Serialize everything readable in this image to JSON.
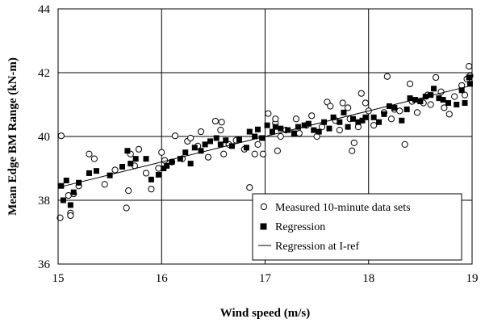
{
  "chart_data": {
    "type": "scatter",
    "title": "",
    "xlabel": "Wind speed (m/s)",
    "ylabel": "Mean Edge BM Range (kN-m)",
    "xlim": [
      15,
      19
    ],
    "ylim": [
      36,
      44
    ],
    "xticks": [
      15,
      16,
      17,
      18,
      19
    ],
    "yticks": [
      36,
      38,
      40,
      42,
      44
    ],
    "grid": true,
    "legend_position": "bottom-right",
    "series": [
      {
        "name": "Measured 10-minute data sets",
        "marker": "open-circle",
        "color": "#000000",
        "points": [
          [
            15.03,
            40.02
          ],
          [
            15.02,
            37.45
          ],
          [
            15.1,
            38.15
          ],
          [
            15.12,
            37.6
          ],
          [
            15.12,
            37.52
          ],
          [
            15.15,
            38.2
          ],
          [
            15.2,
            38.45
          ],
          [
            15.3,
            39.45
          ],
          [
            15.35,
            39.3
          ],
          [
            15.45,
            38.5
          ],
          [
            15.55,
            38.95
          ],
          [
            15.66,
            37.76
          ],
          [
            15.68,
            38.3
          ],
          [
            15.7,
            39.45
          ],
          [
            15.74,
            39.08
          ],
          [
            15.78,
            39.6
          ],
          [
            15.85,
            38.85
          ],
          [
            15.9,
            38.35
          ],
          [
            15.97,
            39.0
          ],
          [
            16.0,
            39.5
          ],
          [
            16.03,
            39.25
          ],
          [
            16.1,
            39.2
          ],
          [
            16.13,
            40.02
          ],
          [
            16.2,
            39.3
          ],
          [
            16.25,
            39.85
          ],
          [
            16.28,
            39.95
          ],
          [
            16.35,
            39.7
          ],
          [
            16.38,
            40.15
          ],
          [
            16.45,
            39.35
          ],
          [
            16.52,
            40.48
          ],
          [
            16.57,
            40.2
          ],
          [
            16.58,
            40.45
          ],
          [
            16.6,
            39.45
          ],
          [
            16.65,
            39.75
          ],
          [
            16.72,
            39.88
          ],
          [
            16.8,
            39.6
          ],
          [
            16.85,
            38.4
          ],
          [
            16.9,
            39.45
          ],
          [
            16.93,
            39.75
          ],
          [
            16.98,
            39.45
          ],
          [
            17.03,
            40.72
          ],
          [
            17.1,
            40.42
          ],
          [
            17.1,
            40.55
          ],
          [
            17.12,
            39.55
          ],
          [
            17.15,
            40.0
          ],
          [
            17.2,
            40.2
          ],
          [
            17.3,
            40.55
          ],
          [
            17.33,
            40.1
          ],
          [
            17.4,
            40.35
          ],
          [
            17.45,
            40.65
          ],
          [
            17.5,
            40.0
          ],
          [
            17.55,
            40.3
          ],
          [
            17.6,
            41.08
          ],
          [
            17.63,
            40.95
          ],
          [
            17.68,
            40.5
          ],
          [
            17.72,
            40.2
          ],
          [
            17.75,
            41.05
          ],
          [
            17.8,
            40.9
          ],
          [
            17.82,
            40.55
          ],
          [
            17.84,
            39.55
          ],
          [
            17.86,
            39.8
          ],
          [
            17.9,
            40.3
          ],
          [
            17.93,
            41.35
          ],
          [
            17.97,
            41.05
          ],
          [
            18.0,
            40.8
          ],
          [
            18.05,
            40.35
          ],
          [
            18.15,
            40.75
          ],
          [
            18.18,
            41.88
          ],
          [
            18.22,
            40.55
          ],
          [
            18.25,
            40.85
          ],
          [
            18.3,
            40.8
          ],
          [
            18.35,
            39.75
          ],
          [
            18.4,
            41.65
          ],
          [
            18.42,
            41.1
          ],
          [
            18.47,
            40.75
          ],
          [
            18.53,
            41.05
          ],
          [
            18.57,
            41.3
          ],
          [
            18.6,
            41.0
          ],
          [
            18.65,
            41.85
          ],
          [
            18.7,
            41.4
          ],
          [
            18.73,
            40.9
          ],
          [
            18.78,
            40.7
          ],
          [
            18.83,
            41.25
          ],
          [
            18.9,
            41.6
          ],
          [
            18.93,
            41.3
          ],
          [
            18.95,
            41.8
          ],
          [
            18.97,
            42.2
          ],
          [
            18.98,
            41.9
          ]
        ]
      },
      {
        "name": "Regression",
        "marker": "filled-square",
        "color": "#000000",
        "points": [
          [
            15.03,
            38.45
          ],
          [
            15.05,
            38.0
          ],
          [
            15.08,
            38.62
          ],
          [
            15.12,
            37.85
          ],
          [
            15.15,
            38.25
          ],
          [
            15.2,
            38.55
          ],
          [
            15.3,
            38.85
          ],
          [
            15.37,
            38.92
          ],
          [
            15.5,
            38.78
          ],
          [
            15.62,
            39.05
          ],
          [
            15.67,
            39.55
          ],
          [
            15.7,
            39.15
          ],
          [
            15.75,
            39.3
          ],
          [
            15.85,
            39.3
          ],
          [
            15.9,
            38.65
          ],
          [
            15.97,
            38.8
          ],
          [
            16.02,
            39.0
          ],
          [
            16.05,
            39.08
          ],
          [
            16.1,
            39.2
          ],
          [
            16.18,
            39.3
          ],
          [
            16.23,
            39.5
          ],
          [
            16.28,
            39.15
          ],
          [
            16.32,
            39.65
          ],
          [
            16.38,
            39.55
          ],
          [
            16.42,
            39.75
          ],
          [
            16.47,
            39.85
          ],
          [
            16.53,
            39.95
          ],
          [
            16.57,
            39.75
          ],
          [
            16.62,
            39.88
          ],
          [
            16.68,
            39.7
          ],
          [
            16.75,
            39.9
          ],
          [
            16.82,
            39.65
          ],
          [
            16.85,
            40.15
          ],
          [
            16.9,
            40.0
          ],
          [
            16.93,
            40.22
          ],
          [
            16.97,
            39.95
          ],
          [
            17.02,
            40.35
          ],
          [
            17.07,
            40.15
          ],
          [
            17.1,
            40.3
          ],
          [
            17.15,
            40.25
          ],
          [
            17.22,
            40.2
          ],
          [
            17.28,
            40.1
          ],
          [
            17.32,
            40.3
          ],
          [
            17.38,
            40.35
          ],
          [
            17.42,
            40.4
          ],
          [
            17.47,
            40.2
          ],
          [
            17.52,
            40.15
          ],
          [
            17.57,
            40.45
          ],
          [
            17.62,
            40.25
          ],
          [
            17.66,
            40.6
          ],
          [
            17.72,
            40.45
          ],
          [
            17.76,
            40.75
          ],
          [
            17.8,
            40.3
          ],
          [
            17.85,
            40.55
          ],
          [
            17.9,
            40.45
          ],
          [
            17.94,
            40.5
          ],
          [
            17.97,
            40.6
          ],
          [
            18.05,
            40.6
          ],
          [
            18.1,
            40.45
          ],
          [
            18.15,
            40.7
          ],
          [
            18.2,
            40.95
          ],
          [
            18.25,
            40.9
          ],
          [
            18.32,
            40.5
          ],
          [
            18.37,
            40.85
          ],
          [
            18.4,
            41.2
          ],
          [
            18.45,
            41.15
          ],
          [
            18.5,
            41.1
          ],
          [
            18.55,
            41.25
          ],
          [
            18.6,
            41.3
          ],
          [
            18.63,
            41.5
          ],
          [
            18.68,
            41.2
          ],
          [
            18.72,
            41.15
          ],
          [
            18.77,
            41.05
          ],
          [
            18.85,
            41.0
          ],
          [
            18.9,
            41.45
          ],
          [
            18.93,
            41.05
          ],
          [
            18.97,
            41.85
          ],
          [
            18.98,
            41.65
          ]
        ]
      },
      {
        "name": "Regression at I-ref",
        "marker": "line",
        "color": "#000000",
        "points": [
          [
            15.0,
            38.4
          ],
          [
            19.0,
            41.6
          ]
        ]
      }
    ]
  }
}
